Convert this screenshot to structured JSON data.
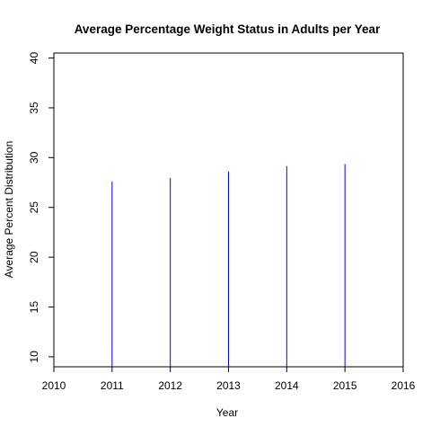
{
  "chart_data": {
    "type": "bar",
    "title": "Average Percentage Weight Status in Adults per Year",
    "xlabel": "Year",
    "ylabel": "Average Percent Distribution",
    "x": [
      2011,
      2012,
      2013,
      2014,
      2015
    ],
    "values": [
      27.6,
      27.95,
      28.6,
      29.15,
      29.35
    ],
    "xlim": [
      2010,
      2016
    ],
    "ylim": [
      9,
      40.5
    ],
    "xticks": [
      "2010",
      "2011",
      "2012",
      "2013",
      "2014",
      "2015",
      "2016"
    ],
    "yticks": [
      "10",
      "15",
      "20",
      "25",
      "30",
      "35",
      "40"
    ],
    "bar_color": "#0000ff",
    "axis_color": "#000000",
    "grid": false,
    "legend": "none"
  }
}
